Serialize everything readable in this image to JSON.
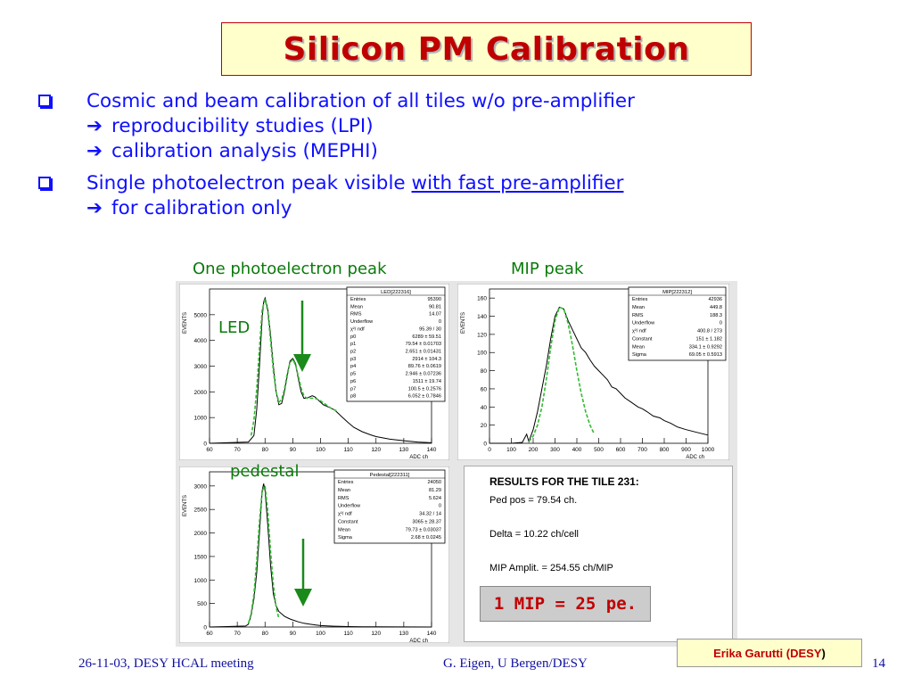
{
  "slide": {
    "title": "Silicon PM Calibration",
    "bullets": [
      {
        "lead": "Cosmic and beam calibration of all tiles w/o pre-amplifier",
        "subs": [
          "reproducibility studies (LPI)",
          "calibration analysis (MEPHI)"
        ]
      },
      {
        "lead": "Single photoelectron peak visible ",
        "lead_underlined": "with fast pre-amplifier",
        "subs": [
          "for calibration only"
        ]
      }
    ],
    "arrow_glyph": "➔"
  },
  "captions": {
    "one_pe": "One photoelectron peak",
    "mip": "MIP peak",
    "led": "LED",
    "pedestal": "pedestal"
  },
  "colors": {
    "title_text": "#c00000",
    "title_bg": "#ffffcc",
    "bullet_text": "#1010ff",
    "caption_green": "#0a7a0a",
    "fit_green": "#33bb33",
    "arrow_green": "#1a8a1a",
    "footer_text": "#1010a0"
  },
  "chart_data": [
    {
      "type": "line",
      "name_id": "led",
      "stats_title": "LED[222316]",
      "ylabel": "EVENTS",
      "xlabel": "ADC ch",
      "xlim": [
        60,
        140
      ],
      "ylim": [
        0,
        6000
      ],
      "xticks": [
        60,
        70,
        80,
        90,
        100,
        110,
        120,
        130,
        140
      ],
      "yticks": [
        0,
        1000,
        2000,
        3000,
        4000,
        5000
      ],
      "stats": [
        [
          "Entries",
          "95390"
        ],
        [
          "Mean",
          "90.81"
        ],
        [
          "RMS",
          "14.07"
        ],
        [
          "Underflow",
          "0"
        ],
        [
          "χ²/ ndf",
          "95.39 / 30"
        ],
        [
          "p0",
          "6289 ± 59.51"
        ],
        [
          "p1",
          "79.54 ± 0.01703"
        ],
        [
          "p2",
          "2.651 ± 0.01431"
        ],
        [
          "p3",
          "2914 ± 104.3"
        ],
        [
          "p4",
          "89.76 ± 0.0619"
        ],
        [
          "p5",
          "2.946 ± 0.07236"
        ],
        [
          "p6",
          "1511 ± 19.74"
        ],
        [
          "p7",
          "100.5 ± 0.2576"
        ],
        [
          "p8",
          "6.052 ± 0.7846"
        ]
      ],
      "x": [
        60,
        74,
        76,
        77,
        78,
        79,
        79.5,
        80,
        81,
        82,
        83,
        84,
        85,
        86,
        87,
        88,
        89,
        90,
        91,
        92,
        93,
        94,
        95,
        96,
        97,
        98,
        99,
        100,
        101,
        102,
        103,
        104,
        105,
        106,
        108,
        110,
        112,
        115,
        118,
        120,
        125,
        130,
        135,
        140
      ],
      "values": [
        0,
        50,
        300,
        1300,
        3000,
        4900,
        5500,
        5650,
        5200,
        4200,
        3000,
        2000,
        1500,
        1550,
        2000,
        2600,
        3200,
        3300,
        3100,
        2500,
        2000,
        1750,
        1750,
        1800,
        1850,
        1800,
        1700,
        1600,
        1500,
        1450,
        1400,
        1350,
        1300,
        1200,
        1000,
        800,
        620,
        450,
        330,
        260,
        160,
        100,
        50,
        20
      ],
      "fit_x": [
        75,
        76,
        77,
        78,
        79,
        80,
        81,
        82,
        83,
        84,
        85,
        86,
        87,
        88,
        89,
        90,
        91,
        92,
        93,
        94,
        95,
        96,
        98,
        100,
        102,
        104,
        106
      ],
      "fit_values": [
        300,
        900,
        2100,
        3700,
        5200,
        5600,
        5100,
        4000,
        2800,
        2000,
        1600,
        1700,
        2100,
        2700,
        3150,
        3250,
        3050,
        2600,
        2150,
        1850,
        1750,
        1750,
        1750,
        1650,
        1500,
        1350,
        1250
      ]
    },
    {
      "type": "line",
      "name_id": "mip",
      "stats_title": "MIP[222312]",
      "ylabel": "EVENTS",
      "xlabel": "ADC ch",
      "xlim": [
        0,
        1000
      ],
      "ylim": [
        0,
        170
      ],
      "xticks": [
        0,
        100,
        200,
        300,
        400,
        500,
        600,
        700,
        800,
        900,
        1000
      ],
      "yticks": [
        0,
        20,
        40,
        60,
        80,
        100,
        120,
        140,
        160
      ],
      "stats": [
        [
          "Entries",
          "42936"
        ],
        [
          "Mean",
          "449.8"
        ],
        [
          "RMS",
          "188.3"
        ],
        [
          "Underflow",
          "0"
        ],
        [
          "χ²/ ndf",
          "400.8 / 273"
        ],
        [
          "Constant",
          "151 ± 1.182"
        ],
        [
          "Mean",
          "334.1 ± 0.9292"
        ],
        [
          "Sigma",
          "69.05 ± 0.5913"
        ]
      ],
      "x": [
        0,
        100,
        150,
        170,
        180,
        200,
        220,
        240,
        260,
        280,
        300,
        320,
        340,
        360,
        380,
        400,
        420,
        440,
        460,
        480,
        500,
        520,
        540,
        560,
        580,
        600,
        620,
        650,
        680,
        700,
        720,
        750,
        780,
        800,
        830,
        860,
        900,
        950,
        1000
      ],
      "values": [
        0,
        0,
        1,
        10,
        2,
        15,
        35,
        60,
        85,
        115,
        140,
        150,
        148,
        135,
        125,
        115,
        105,
        100,
        92,
        85,
        80,
        75,
        70,
        62,
        60,
        55,
        50,
        45,
        40,
        38,
        35,
        30,
        28,
        25,
        22,
        18,
        15,
        12,
        9
      ],
      "fit_x": [
        180,
        200,
        220,
        240,
        260,
        280,
        300,
        320,
        340,
        360,
        380,
        400,
        420,
        440,
        460,
        480
      ],
      "fit_values": [
        2,
        8,
        20,
        40,
        70,
        105,
        135,
        150,
        148,
        132,
        108,
        80,
        55,
        35,
        20,
        10
      ]
    },
    {
      "type": "line",
      "name_id": "pedestal",
      "stats_title": "Pedestal[222311]",
      "ylabel": "EVENTS",
      "xlabel": "ADC ch",
      "xlim": [
        60,
        140
      ],
      "ylim": [
        0,
        3300
      ],
      "xticks": [
        60,
        70,
        80,
        90,
        100,
        110,
        120,
        130,
        140
      ],
      "yticks": [
        0,
        500,
        1000,
        1500,
        2000,
        2500,
        3000
      ],
      "stats": [
        [
          "Entries",
          "24050"
        ],
        [
          "Mean",
          "81.29"
        ],
        [
          "RMS",
          "5.624"
        ],
        [
          "Underflow",
          "0"
        ],
        [
          "χ²/ ndf",
          "34.32 / 14"
        ],
        [
          "Constant",
          "3065 ± 28.37"
        ],
        [
          "Mean",
          "79.73 ± 0.03037"
        ],
        [
          "Sigma",
          "2.68 ± 0.0245"
        ]
      ],
      "x": [
        60,
        73,
        74,
        75,
        76,
        77,
        78,
        79,
        79.5,
        80,
        81,
        82,
        83,
        84,
        85,
        86,
        87,
        88,
        89,
        90,
        92,
        94,
        96,
        98,
        100,
        105,
        110,
        115,
        120,
        130,
        140
      ],
      "values": [
        0,
        20,
        60,
        250,
        600,
        1150,
        2000,
        2900,
        3050,
        2900,
        2150,
        1300,
        700,
        450,
        330,
        280,
        230,
        200,
        170,
        150,
        110,
        80,
        60,
        45,
        30,
        18,
        10,
        6,
        3,
        1,
        0
      ],
      "fit_x": [
        74,
        75,
        76,
        77,
        78,
        79,
        80,
        81,
        82,
        83,
        84,
        85
      ],
      "fit_values": [
        80,
        280,
        700,
        1400,
        2250,
        2900,
        3000,
        2450,
        1600,
        900,
        420,
        180
      ]
    }
  ],
  "results": {
    "title": "RESULTS FOR THE TILE 231:",
    "ped": "Ped pos = 79.54 ch.",
    "delta": "Delta  = 10.22 ch/cell",
    "mip": "MIP Amplit. = 254.55 ch/MIP",
    "conclusion": "1 MIP = 25 pe."
  },
  "footer": {
    "date": "26-11-03, DESY HCAL meeting",
    "authors": "G. Eigen,  U Bergen/DESY",
    "box_name": "Erika Garutti (DESY",
    "box_paren": ")",
    "page": "14"
  }
}
